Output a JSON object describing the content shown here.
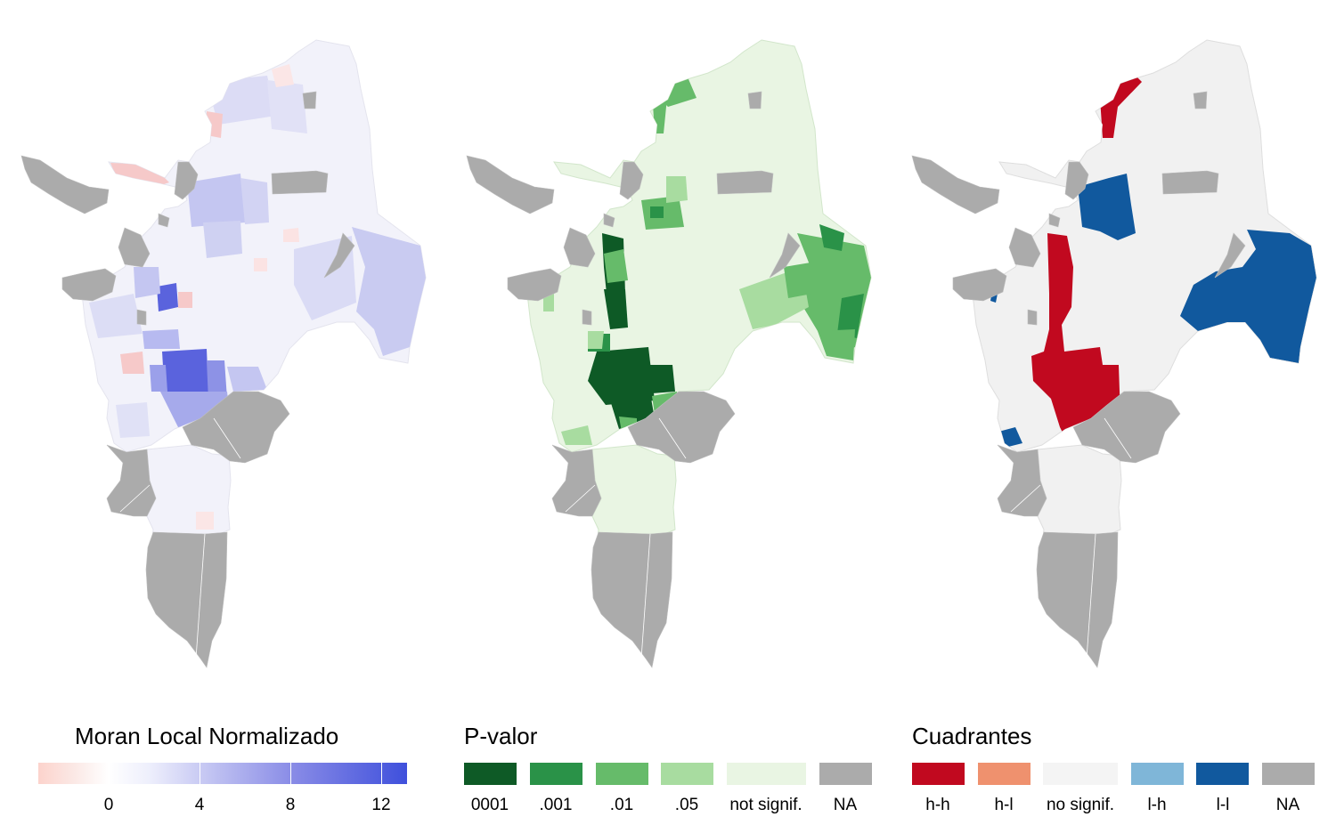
{
  "panels": [
    {
      "id": "moran",
      "colors": {
        "base": "#f2f2fa",
        "high": "#5a63dd",
        "mid": "#c4c6f1",
        "low": "#f6c9c9",
        "na": "#ababab",
        "border": "#e4e4ee"
      }
    },
    {
      "id": "pvalue",
      "colors": {
        "base": "#e9f5e3",
        "c1": "#0e5a26",
        "c2": "#2a9248",
        "c3": "#66bb6a",
        "c4": "#a8dca0",
        "na": "#ababab",
        "border": "#d2e6cb"
      }
    },
    {
      "id": "quadrants",
      "colors": {
        "base": "#f1f1f1",
        "hh": "#c1091f",
        "ll": "#11599e",
        "na": "#ababab",
        "border": "#dedede"
      }
    }
  ],
  "legend_moran": {
    "title": "Moran Local Normalizado",
    "ticks": [
      "0",
      "4",
      "8",
      "12"
    ],
    "tick_values": [
      0,
      4,
      8,
      12
    ],
    "range": [
      -3,
      13
    ],
    "colors": [
      "#fcd3cc",
      "#ffffff",
      "#b9bbf0",
      "#3f50dc"
    ]
  },
  "legend_pvalue": {
    "title": "P-valor",
    "items": [
      {
        "label": "0001",
        "color": "#0e5a26"
      },
      {
        "label": ".001",
        "color": "#2a9248"
      },
      {
        "label": ".01",
        "color": "#66bb6a"
      },
      {
        "label": ".05",
        "color": "#a8dca0"
      },
      {
        "label": "not signif.",
        "color": "#e9f5e3"
      },
      {
        "label": "NA",
        "color": "#ababab"
      }
    ]
  },
  "legend_quadrants": {
    "title": "Cuadrantes",
    "items": [
      {
        "label": "h-h",
        "color": "#c1091f"
      },
      {
        "label": "h-l",
        "color": "#ef916e"
      },
      {
        "label": "no signif.",
        "color": "#f4f4f4"
      },
      {
        "label": "l-h",
        "color": "#7fb6d8"
      },
      {
        "label": "l-l",
        "color": "#11599e"
      },
      {
        "label": "NA",
        "color": "#ababab"
      }
    ]
  }
}
